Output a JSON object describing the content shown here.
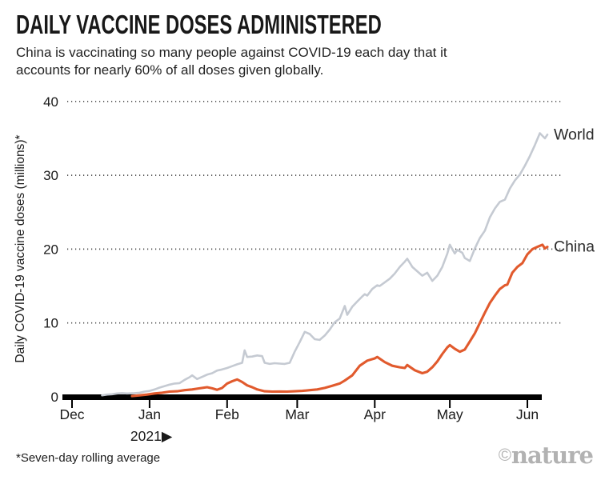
{
  "header": {
    "title": "DAILY VACCINE DOSES ADMINISTERED",
    "subtitle": "China is vaccinating so many people against COVID-19 each day that it accounts for nearly 60% of all doses given globally."
  },
  "footer": {
    "footnote": "*Seven-day rolling average",
    "credit_symbol": "©",
    "credit_name": "nature"
  },
  "colors": {
    "world_line": "#c5cad2",
    "china_line": "#e15a2d",
    "axis": "#000000",
    "grid_dots": "#4b4b4b",
    "text": "#1a1a1a",
    "series_label_text": "#2b2b2b",
    "credit_gray": "#b2b2b2"
  },
  "chart_data": {
    "type": "line",
    "title": "DAILY VACCINE DOSES ADMINISTERED",
    "subtitle": "China is vaccinating so many people against COVID-19 each day that it accounts for nearly 60% of all doses given globally.",
    "ylabel": "Daily COVID-19 vaccine doses (millions)*",
    "xlabel": "",
    "ylim": [
      0,
      40
    ],
    "yticks": [
      40,
      30,
      20,
      10,
      0
    ],
    "grid": "horizontal-dotted",
    "legend_position": "end-of-line-labels",
    "footnote": "*Seven-day rolling average",
    "x_start": "2020-12-01",
    "year_annotation": "2021▶",
    "xticks": [
      {
        "label": "Dec",
        "date": "2020-12-01"
      },
      {
        "label": "Jan",
        "date": "2021-01-01"
      },
      {
        "label": "Feb",
        "date": "2021-02-01"
      },
      {
        "label": "Mar",
        "date": "2021-03-01"
      },
      {
        "label": "Apr",
        "date": "2021-04-01"
      },
      {
        "label": "May",
        "date": "2021-05-01"
      },
      {
        "label": "Jun",
        "date": "2021-06-01"
      }
    ],
    "series": [
      {
        "name": "World",
        "color": "#c5cad2",
        "stroke_width": 2.6,
        "points": [
          [
            "2020-12-13",
            0.2
          ],
          [
            "2020-12-15",
            0.3
          ],
          [
            "2020-12-17",
            0.35
          ],
          [
            "2020-12-19",
            0.45
          ],
          [
            "2020-12-21",
            0.5
          ],
          [
            "2020-12-23",
            0.45
          ],
          [
            "2020-12-26",
            0.5
          ],
          [
            "2020-12-28",
            0.55
          ],
          [
            "2020-12-30",
            0.7
          ],
          [
            "2021-01-01",
            0.8
          ],
          [
            "2021-01-03",
            1.0
          ],
          [
            "2021-01-05",
            1.25
          ],
          [
            "2021-01-07",
            1.45
          ],
          [
            "2021-01-09",
            1.65
          ],
          [
            "2021-01-11",
            1.8
          ],
          [
            "2021-01-13",
            1.85
          ],
          [
            "2021-01-15",
            2.3
          ],
          [
            "2021-01-17",
            2.65
          ],
          [
            "2021-01-18",
            2.9
          ],
          [
            "2021-01-20",
            2.4
          ],
          [
            "2021-01-22",
            2.7
          ],
          [
            "2021-01-24",
            3.0
          ],
          [
            "2021-01-26",
            3.2
          ],
          [
            "2021-01-28",
            3.55
          ],
          [
            "2021-01-30",
            3.7
          ],
          [
            "2021-02-01",
            3.9
          ],
          [
            "2021-02-03",
            4.15
          ],
          [
            "2021-02-05",
            4.4
          ],
          [
            "2021-02-07",
            4.6
          ],
          [
            "2021-02-08",
            6.3
          ],
          [
            "2021-02-09",
            5.4
          ],
          [
            "2021-02-11",
            5.45
          ],
          [
            "2021-02-13",
            5.6
          ],
          [
            "2021-02-15",
            5.5
          ],
          [
            "2021-02-16",
            4.6
          ],
          [
            "2021-02-18",
            4.45
          ],
          [
            "2021-02-20",
            4.55
          ],
          [
            "2021-02-22",
            4.5
          ],
          [
            "2021-02-24",
            4.45
          ],
          [
            "2021-02-26",
            4.6
          ],
          [
            "2021-02-28",
            6.1
          ],
          [
            "2021-03-02",
            7.4
          ],
          [
            "2021-03-04",
            8.8
          ],
          [
            "2021-03-06",
            8.5
          ],
          [
            "2021-03-08",
            7.8
          ],
          [
            "2021-03-10",
            7.7
          ],
          [
            "2021-03-12",
            8.3
          ],
          [
            "2021-03-14",
            9.1
          ],
          [
            "2021-03-16",
            10.1
          ],
          [
            "2021-03-18",
            10.6
          ],
          [
            "2021-03-20",
            12.3
          ],
          [
            "2021-03-21",
            11.1
          ],
          [
            "2021-03-23",
            12.2
          ],
          [
            "2021-03-25",
            12.9
          ],
          [
            "2021-03-27",
            13.6
          ],
          [
            "2021-03-28",
            13.9
          ],
          [
            "2021-03-29",
            13.7
          ],
          [
            "2021-03-31",
            14.6
          ],
          [
            "2021-04-02",
            15.1
          ],
          [
            "2021-04-03",
            15.0
          ],
          [
            "2021-04-05",
            15.5
          ],
          [
            "2021-04-07",
            16.0
          ],
          [
            "2021-04-09",
            16.7
          ],
          [
            "2021-04-11",
            17.6
          ],
          [
            "2021-04-13",
            18.3
          ],
          [
            "2021-04-14",
            18.7
          ],
          [
            "2021-04-16",
            17.6
          ],
          [
            "2021-04-18",
            17.0
          ],
          [
            "2021-04-20",
            16.4
          ],
          [
            "2021-04-22",
            16.8
          ],
          [
            "2021-04-24",
            15.7
          ],
          [
            "2021-04-26",
            16.4
          ],
          [
            "2021-04-28",
            17.6
          ],
          [
            "2021-04-30",
            19.4
          ],
          [
            "2021-05-01",
            20.6
          ],
          [
            "2021-05-03",
            19.4
          ],
          [
            "2021-05-04",
            19.9
          ],
          [
            "2021-05-06",
            19.5
          ],
          [
            "2021-05-07",
            18.8
          ],
          [
            "2021-05-09",
            18.4
          ],
          [
            "2021-05-11",
            20.1
          ],
          [
            "2021-05-13",
            21.5
          ],
          [
            "2021-05-15",
            22.5
          ],
          [
            "2021-05-17",
            24.3
          ],
          [
            "2021-05-19",
            25.5
          ],
          [
            "2021-05-21",
            26.4
          ],
          [
            "2021-05-23",
            26.7
          ],
          [
            "2021-05-25",
            28.2
          ],
          [
            "2021-05-27",
            29.3
          ],
          [
            "2021-05-29",
            30.1
          ],
          [
            "2021-05-31",
            31.3
          ],
          [
            "2021-06-02",
            32.6
          ],
          [
            "2021-06-04",
            34.1
          ],
          [
            "2021-06-06",
            35.7
          ],
          [
            "2021-06-08",
            35.0
          ],
          [
            "2021-06-09",
            35.5
          ]
        ]
      },
      {
        "name": "China",
        "color": "#e15a2d",
        "stroke_width": 3.1,
        "points": [
          [
            "2020-12-25",
            0.1
          ],
          [
            "2020-12-28",
            0.2
          ],
          [
            "2020-12-31",
            0.3
          ],
          [
            "2021-01-03",
            0.45
          ],
          [
            "2021-01-06",
            0.55
          ],
          [
            "2021-01-09",
            0.7
          ],
          [
            "2021-01-12",
            0.75
          ],
          [
            "2021-01-15",
            0.9
          ],
          [
            "2021-01-18",
            1.0
          ],
          [
            "2021-01-21",
            1.15
          ],
          [
            "2021-01-24",
            1.3
          ],
          [
            "2021-01-26",
            1.15
          ],
          [
            "2021-01-28",
            0.95
          ],
          [
            "2021-01-30",
            1.2
          ],
          [
            "2021-02-01",
            1.8
          ],
          [
            "2021-02-03",
            2.1
          ],
          [
            "2021-02-05",
            2.35
          ],
          [
            "2021-02-07",
            2.0
          ],
          [
            "2021-02-09",
            1.55
          ],
          [
            "2021-02-11",
            1.3
          ],
          [
            "2021-02-13",
            1.0
          ],
          [
            "2021-02-16",
            0.75
          ],
          [
            "2021-02-19",
            0.7
          ],
          [
            "2021-02-22",
            0.72
          ],
          [
            "2021-02-25",
            0.7
          ],
          [
            "2021-02-28",
            0.75
          ],
          [
            "2021-03-03",
            0.8
          ],
          [
            "2021-03-06",
            0.9
          ],
          [
            "2021-03-09",
            1.0
          ],
          [
            "2021-03-12",
            1.2
          ],
          [
            "2021-03-15",
            1.5
          ],
          [
            "2021-03-18",
            1.8
          ],
          [
            "2021-03-20",
            2.2
          ],
          [
            "2021-03-23",
            2.9
          ],
          [
            "2021-03-26",
            4.2
          ],
          [
            "2021-03-29",
            4.9
          ],
          [
            "2021-04-01",
            5.2
          ],
          [
            "2021-04-02",
            5.4
          ],
          [
            "2021-04-05",
            4.7
          ],
          [
            "2021-04-08",
            4.2
          ],
          [
            "2021-04-11",
            4.0
          ],
          [
            "2021-04-13",
            3.9
          ],
          [
            "2021-04-14",
            4.3
          ],
          [
            "2021-04-17",
            3.6
          ],
          [
            "2021-04-20",
            3.2
          ],
          [
            "2021-04-22",
            3.4
          ],
          [
            "2021-04-24",
            4.0
          ],
          [
            "2021-04-26",
            4.8
          ],
          [
            "2021-04-28",
            5.8
          ],
          [
            "2021-04-30",
            6.7
          ],
          [
            "2021-05-01",
            7.0
          ],
          [
            "2021-05-03",
            6.5
          ],
          [
            "2021-05-05",
            6.1
          ],
          [
            "2021-05-07",
            6.4
          ],
          [
            "2021-05-09",
            7.5
          ],
          [
            "2021-05-11",
            8.6
          ],
          [
            "2021-05-13",
            10.0
          ],
          [
            "2021-05-15",
            11.4
          ],
          [
            "2021-05-17",
            12.7
          ],
          [
            "2021-05-19",
            13.7
          ],
          [
            "2021-05-21",
            14.6
          ],
          [
            "2021-05-23",
            15.1
          ],
          [
            "2021-05-24",
            15.2
          ],
          [
            "2021-05-26",
            16.8
          ],
          [
            "2021-05-28",
            17.6
          ],
          [
            "2021-05-30",
            18.1
          ],
          [
            "2021-06-01",
            19.3
          ],
          [
            "2021-06-03",
            20.0
          ],
          [
            "2021-06-05",
            20.3
          ],
          [
            "2021-06-07",
            20.6
          ],
          [
            "2021-06-08",
            20.1
          ],
          [
            "2021-06-09",
            20.3
          ]
        ]
      }
    ]
  }
}
